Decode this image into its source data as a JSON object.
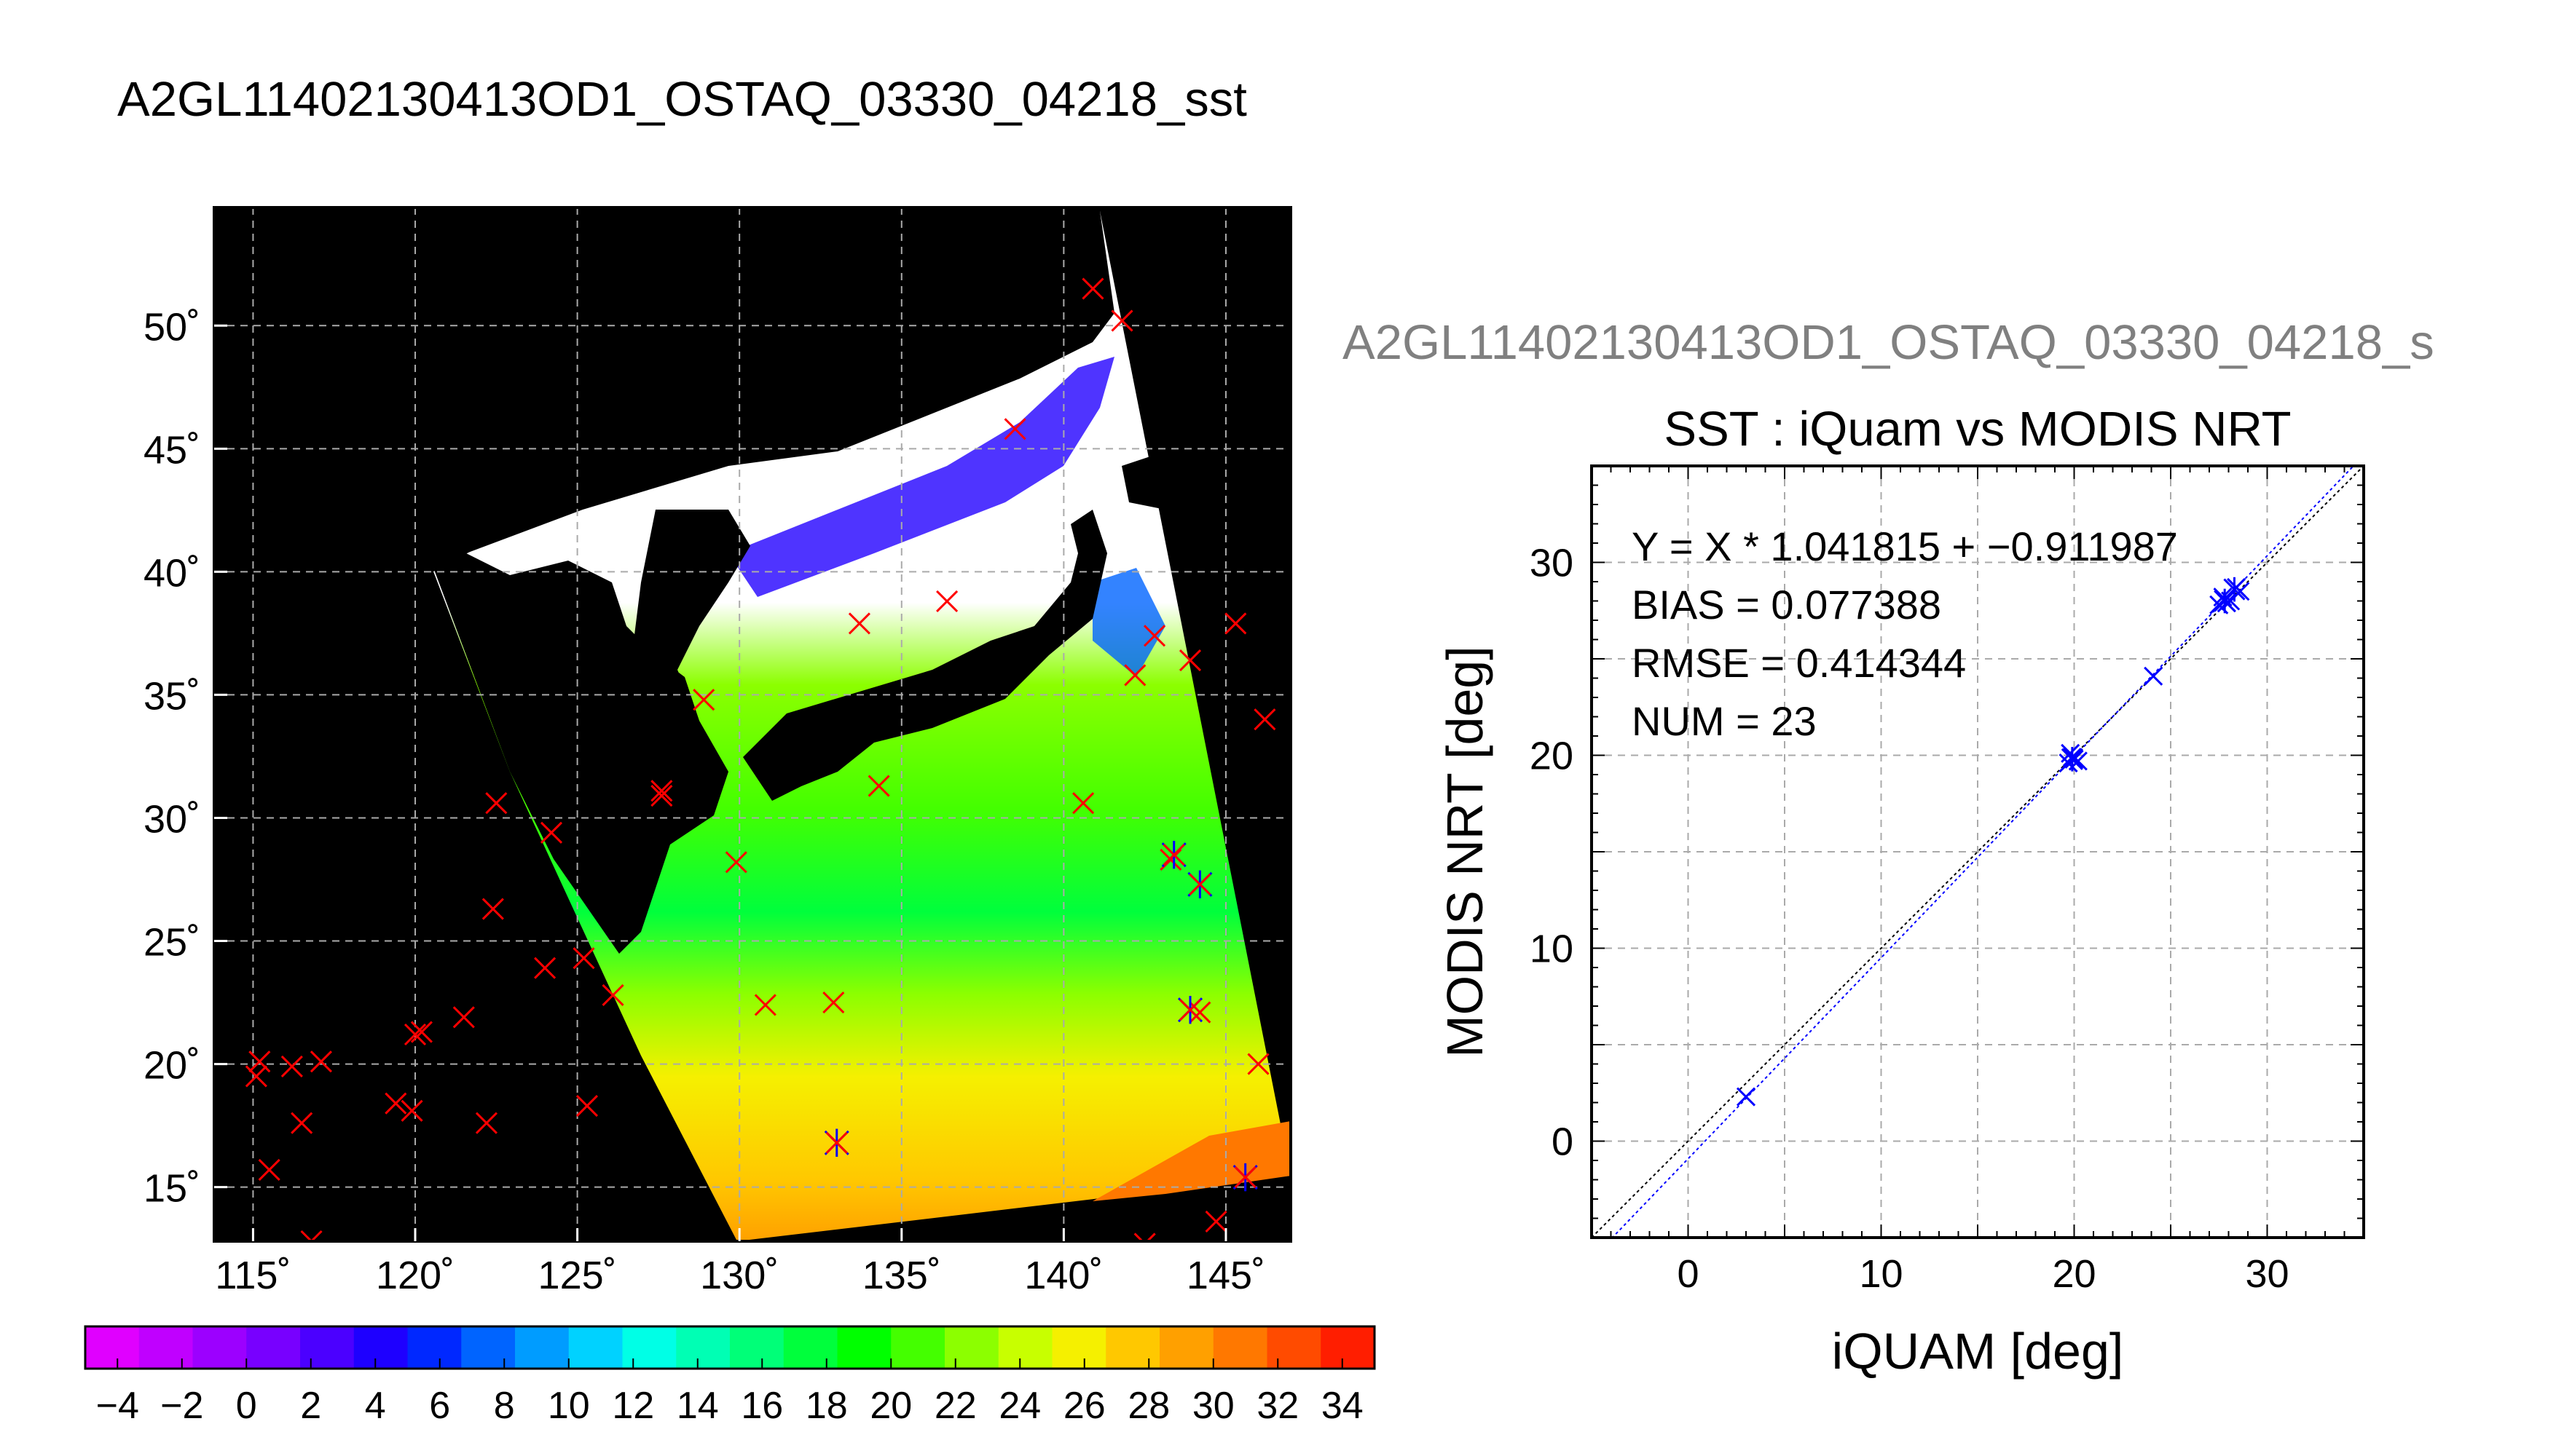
{
  "title": "A2GL11402130413OD1_OSTAQ_03330_04218_sst",
  "subtitle": "A2GL11402130413OD1_OSTAQ_03330_04218_s",
  "chart_data": [
    {
      "type": "map",
      "lon_ticks": [
        "115˚",
        "120˚",
        "125˚",
        "130˚",
        "135˚",
        "140˚",
        "145˚"
      ],
      "lat_ticks": [
        "50˚",
        "45˚",
        "40˚",
        "35˚",
        "30˚",
        "25˚",
        "20˚",
        "15˚"
      ],
      "lon_values": [
        115,
        120,
        125,
        130,
        135,
        140,
        145
      ],
      "lat_values": [
        50,
        45,
        40,
        35,
        30,
        25,
        20,
        15
      ],
      "lon_range": [
        113.8,
        147
      ],
      "lat_range": [
        12.8,
        54.8
      ],
      "grid": true,
      "colorbar": {
        "range": [
          -5,
          35
        ],
        "tick_labels": [
          "−4",
          "−2",
          "0",
          "2",
          "4",
          "6",
          "8",
          "10",
          "12",
          "14",
          "16",
          "18",
          "20",
          "22",
          "24",
          "26",
          "28",
          "30",
          "32",
          "34"
        ],
        "tick_values": [
          -4,
          -2,
          0,
          2,
          4,
          6,
          8,
          10,
          12,
          14,
          16,
          18,
          20,
          22,
          24,
          26,
          28,
          30,
          32,
          34
        ],
        "colors": [
          "#e000ff",
          "#c000ff",
          "#9c00ff",
          "#7800ff",
          "#4b00ff",
          "#1e00ff",
          "#0028ff",
          "#0064ff",
          "#009cff",
          "#00d2ff",
          "#00ffe6",
          "#00ffb4",
          "#00ff78",
          "#00ff3c",
          "#00ff00",
          "#44ff00",
          "#8cff00",
          "#c8ff00",
          "#f5f000",
          "#ffc800",
          "#ffa000",
          "#ff7800",
          "#ff4b00",
          "#ff1e00"
        ]
      },
      "markers_x": [
        [
          116.8,
          12.8
        ],
        [
          115.2,
          20.1
        ],
        [
          115.1,
          19.5
        ],
        [
          116.2,
          19.9
        ],
        [
          117.1,
          20.1
        ],
        [
          116.5,
          17.6
        ],
        [
          115.5,
          15.7
        ],
        [
          119.4,
          18.4
        ],
        [
          119.9,
          18.1
        ],
        [
          120.0,
          21.2
        ],
        [
          120.2,
          21.3
        ],
        [
          121.5,
          21.9
        ],
        [
          122.2,
          17.6
        ],
        [
          122.4,
          26.3
        ],
        [
          122.5,
          30.6
        ],
        [
          124.0,
          23.9
        ],
        [
          124.2,
          29.4
        ],
        [
          125.2,
          24.3
        ],
        [
          125.3,
          18.3
        ],
        [
          126.1,
          22.8
        ],
        [
          127.6,
          31.1
        ],
        [
          127.6,
          30.9
        ],
        [
          128.9,
          34.8
        ],
        [
          129.9,
          28.2
        ],
        [
          130.8,
          22.4
        ],
        [
          132.9,
          22.5
        ],
        [
          133.7,
          37.9
        ],
        [
          134.3,
          31.3
        ],
        [
          136.4,
          38.8
        ],
        [
          138.5,
          45.8
        ],
        [
          140.6,
          30.6
        ],
        [
          140.9,
          51.5
        ],
        [
          141.8,
          50.2
        ],
        [
          142.2,
          35.8
        ],
        [
          142.8,
          37.4
        ],
        [
          143.3,
          28.3
        ],
        [
          143.9,
          36.4
        ],
        [
          144.2,
          22.1
        ],
        [
          144.7,
          13.6
        ],
        [
          145.3,
          37.9
        ],
        [
          146.0,
          20.0
        ],
        [
          146.2,
          34.0
        ],
        [
          142.5,
          12.7
        ]
      ],
      "markers_star": [
        [
          133.0,
          16.8
        ],
        [
          143.4,
          28.5
        ],
        [
          144.2,
          27.3
        ],
        [
          143.9,
          22.2
        ],
        [
          145.6,
          15.4
        ]
      ]
    },
    {
      "type": "scatter",
      "title": "SST : iQuam vs MODIS NRT",
      "xlabel": "iQUAM [deg]",
      "ylabel": "MODIS NRT [deg]",
      "xlim": [
        -5,
        35
      ],
      "ylim": [
        -5,
        35
      ],
      "xticks": [
        0,
        10,
        20,
        30
      ],
      "yticks": [
        0,
        10,
        20,
        30
      ],
      "grid": true,
      "annotations": [
        "Y = X * 1.041815 + −0.911987",
        "BIAS = 0.077388",
        "RMSE = 0.414344",
        "NUM = 23"
      ],
      "regression": {
        "slope": 1.041815,
        "intercept": -0.911987
      },
      "points_x": [
        [
          3.0,
          2.3
        ],
        [
          19.7,
          19.6
        ],
        [
          19.9,
          19.9
        ],
        [
          20.0,
          19.8
        ],
        [
          19.8,
          20.1
        ],
        [
          20.2,
          19.7
        ],
        [
          24.1,
          24.1
        ],
        [
          27.5,
          27.8
        ],
        [
          27.9,
          27.9
        ],
        [
          27.7,
          28.2
        ],
        [
          28.1,
          28.0
        ],
        [
          28.4,
          28.7
        ],
        [
          28.6,
          28.5
        ]
      ],
      "points_star": [
        [
          19.9,
          19.8
        ],
        [
          27.8,
          28.0
        ],
        [
          28.3,
          28.6
        ]
      ]
    }
  ],
  "colors": {
    "land": "#000000",
    "cloud": "#ffffff",
    "marker_iquam": "#ff0000",
    "marker_match": "#0000ff",
    "grid": "#aaaaaa",
    "one_to_one_line": "#000000",
    "regression_line": "#0000ff",
    "subtitle": "#808080"
  }
}
